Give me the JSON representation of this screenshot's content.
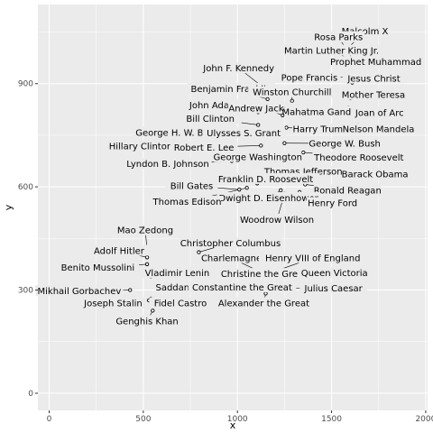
{
  "chart_data": {
    "type": "scatter",
    "title": "",
    "xlabel": "x",
    "ylabel": "y",
    "xlim": [
      -60,
      2010
    ],
    "ylim": [
      -50,
      1130
    ],
    "x_ticks": [
      0,
      500,
      1000,
      1500,
      2000
    ],
    "y_ticks": [
      0,
      300,
      600,
      900
    ],
    "grid": true,
    "legend": "none",
    "colors": {
      "panel": "#ebebeb",
      "grid_major": "#ffffff",
      "point": "#000000",
      "text": "#000000",
      "tick_text": "#4d4d4d"
    },
    "points": [
      {
        "name": "Malcolm X",
        "x": 1590,
        "y": 1005,
        "lx": 1677,
        "ly": 1053
      },
      {
        "name": "Rosa Parks",
        "x": 1610,
        "y": 973,
        "lx": 1537,
        "ly": 1035
      },
      {
        "name": "Martin Luther King Jr.",
        "x": 1610,
        "y": 968,
        "lx": 1500,
        "ly": 996
      },
      {
        "name": "Prophet Muhammad",
        "x": 1610,
        "y": 955,
        "lx": 1735,
        "ly": 963
      },
      {
        "name": "Pope Francis",
        "x": 1600,
        "y": 920,
        "lx": 1382,
        "ly": 917
      },
      {
        "name": "Jesus Christ",
        "x": 1610,
        "y": 903,
        "lx": 1725,
        "ly": 915
      },
      {
        "name": "John F. Kennedy",
        "x": 1140,
        "y": 888,
        "lx": 1007,
        "ly": 945
      },
      {
        "name": "Benjamin Franklin",
        "x": 1160,
        "y": 855,
        "lx": 967,
        "ly": 885
      },
      {
        "name": "Winston Churchill",
        "x": 1290,
        "y": 850,
        "lx": 1290,
        "ly": 875
      },
      {
        "name": "Mother Teresa",
        "x": 1600,
        "y": 858,
        "lx": 1722,
        "ly": 868
      },
      {
        "name": "John Adams",
        "x": 1110,
        "y": 817,
        "lx": 886,
        "ly": 838
      },
      {
        "name": "Andrew Jackson",
        "x": 1240,
        "y": 808,
        "lx": 1142,
        "ly": 828
      },
      {
        "name": "Mahatma Gandhi",
        "x": 1590,
        "y": 830,
        "lx": 1442,
        "ly": 818
      },
      {
        "name": "Joan of Arc",
        "x": 1640,
        "y": 808,
        "lx": 1755,
        "ly": 815
      },
      {
        "name": "Bill Clinton",
        "x": 1110,
        "y": 780,
        "lx": 856,
        "ly": 798
      },
      {
        "name": "Harry Truman",
        "x": 1260,
        "y": 772,
        "lx": 1457,
        "ly": 768
      },
      {
        "name": "Nelson Mandela",
        "x": 1640,
        "y": 780,
        "lx": 1749,
        "ly": 768
      },
      {
        "name": "George H. W. Bush",
        "x": 970,
        "y": 757,
        "lx": 682,
        "ly": 758
      },
      {
        "name": "Ulysses S. Grant",
        "x": 1150,
        "y": 762,
        "lx": 1033,
        "ly": 756
      },
      {
        "name": "George W. Bush",
        "x": 1250,
        "y": 727,
        "lx": 1570,
        "ly": 726
      },
      {
        "name": "Hillary Clinton",
        "x": 975,
        "y": 722,
        "lx": 486,
        "ly": 718
      },
      {
        "name": "Robert E. Lee",
        "x": 1125,
        "y": 720,
        "lx": 822,
        "ly": 715
      },
      {
        "name": "Theodore Roosevelt",
        "x": 1350,
        "y": 700,
        "lx": 1645,
        "ly": 685
      },
      {
        "name": "George Washington",
        "x": 1200,
        "y": 678,
        "lx": 1108,
        "ly": 687
      },
      {
        "name": "Lyndon B. Johnson",
        "x": 970,
        "y": 675,
        "lx": 630,
        "ly": 667
      },
      {
        "name": "Thomas Jefferson",
        "x": 1250,
        "y": 650,
        "lx": 1350,
        "ly": 645
      },
      {
        "name": "Barack Obama",
        "x": 1420,
        "y": 655,
        "lx": 1730,
        "ly": 637
      },
      {
        "name": "Franklin D. Roosevelt",
        "x": 1105,
        "y": 610,
        "lx": 1150,
        "ly": 623
      },
      {
        "name": "Bill Gates",
        "x": 1010,
        "y": 592,
        "lx": 757,
        "ly": 603
      },
      {
        "name": "Ronald Reagan",
        "x": 1360,
        "y": 607,
        "lx": 1585,
        "ly": 590
      },
      {
        "name": "Dwight D. Eisenhower",
        "x": 1230,
        "y": 590,
        "lx": 1165,
        "ly": 568
      },
      {
        "name": "Thomas Edison",
        "x": 1050,
        "y": 597,
        "lx": 733,
        "ly": 557
      },
      {
        "name": "Henry Ford",
        "x": 1330,
        "y": 585,
        "lx": 1505,
        "ly": 553
      },
      {
        "name": "Woodrow Wilson",
        "x": 1250,
        "y": 580,
        "lx": 1210,
        "ly": 505
      },
      {
        "name": "Mao Zedong",
        "x": 520,
        "y": 420,
        "lx": 510,
        "ly": 474
      },
      {
        "name": "Christopher Columbus",
        "x": 795,
        "y": 410,
        "lx": 963,
        "ly": 437
      },
      {
        "name": "Adolf Hitler",
        "x": 520,
        "y": 395,
        "lx": 371,
        "ly": 414
      },
      {
        "name": "Charlemagne",
        "x": 1170,
        "y": 340,
        "lx": 968,
        "ly": 393
      },
      {
        "name": "Henry VIII of England",
        "x": 1175,
        "y": 350,
        "lx": 1400,
        "ly": 393
      },
      {
        "name": "Benito Mussolini",
        "x": 520,
        "y": 375,
        "lx": 258,
        "ly": 366
      },
      {
        "name": "Vladimir Lenin",
        "x": 540,
        "y": 340,
        "lx": 680,
        "ly": 350
      },
      {
        "name": "Christine the Great",
        "x": 1080,
        "y": 347,
        "lx": 1140,
        "ly": 347
      },
      {
        "name": "Queen Victoria",
        "x": 1270,
        "y": 345,
        "lx": 1515,
        "ly": 350
      },
      {
        "name": "Mikhail Gorbachev",
        "x": 430,
        "y": 300,
        "lx": 160,
        "ly": 297
      },
      {
        "name": "Saddam Hussein",
        "x": 640,
        "y": 303,
        "lx": 766,
        "ly": 308
      },
      {
        "name": "Constantine the Great",
        "x": 1140,
        "y": 310,
        "lx": 1025,
        "ly": 308
      },
      {
        "name": "Julius Caesar",
        "x": 1210,
        "y": 305,
        "lx": 1510,
        "ly": 305
      },
      {
        "name": "Joseph Stalin",
        "x": 530,
        "y": 270,
        "lx": 340,
        "ly": 262
      },
      {
        "name": "Fidel Castro",
        "x": 540,
        "y": 275,
        "lx": 697,
        "ly": 262
      },
      {
        "name": "Alexander the Great",
        "x": 1150,
        "y": 290,
        "lx": 1140,
        "ly": 262
      },
      {
        "name": "Genghis Khan",
        "x": 550,
        "y": 240,
        "lx": 520,
        "ly": 210
      }
    ]
  }
}
